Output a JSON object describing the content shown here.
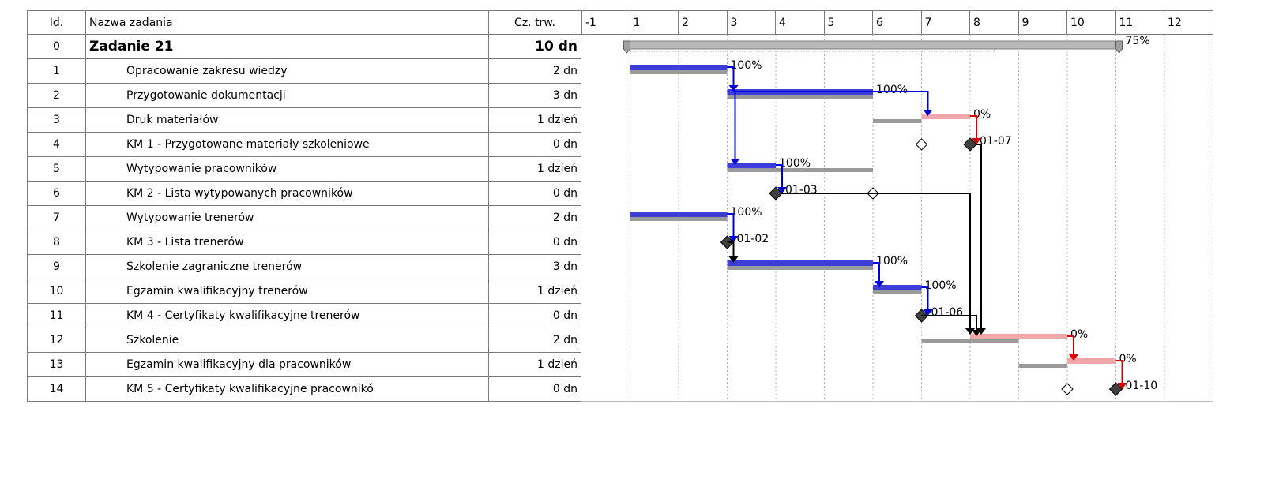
{
  "table": {
    "headers": {
      "id": "Id.",
      "name": "Nazwa zadania",
      "duration": "Cz. trw."
    },
    "rows": [
      {
        "id": "0",
        "name": "Zadanie 21",
        "duration": "10 dn",
        "summary": true
      },
      {
        "id": "1",
        "name": "Opracowanie zakresu wiedzy",
        "duration": "2 dn"
      },
      {
        "id": "2",
        "name": "Przygotowanie dokumentacji",
        "duration": "3 dn"
      },
      {
        "id": "3",
        "name": "Druk materiałów",
        "duration": "1 dzień"
      },
      {
        "id": "4",
        "name": "KM 1 - Przygotowane materiały szkoleniowe",
        "duration": "0 dn"
      },
      {
        "id": "5",
        "name": "Wytypowanie pracowników",
        "duration": "1 dzień"
      },
      {
        "id": "6",
        "name": "KM 2 - Lista wytypowanych pracowników",
        "duration": "0 dn"
      },
      {
        "id": "7",
        "name": "Wytypowanie trenerów",
        "duration": "2 dn"
      },
      {
        "id": "8",
        "name": "KM 3 - Lista trenerów",
        "duration": "0 dn"
      },
      {
        "id": "9",
        "name": "Szkolenie  zagraniczne trenerów",
        "duration": "3 dn"
      },
      {
        "id": "10",
        "name": "Egzamin kwalifikacyjny trenerów",
        "duration": "1 dzień"
      },
      {
        "id": "11",
        "name": "KM 4 - Certyfikaty kwalifikacyjne trenerów",
        "duration": "0 dn"
      },
      {
        "id": "12",
        "name": "Szkolenie",
        "duration": "2 dn"
      },
      {
        "id": "13",
        "name": "Egzamin kwalifikacyjny dla pracowników",
        "duration": "1 dzień"
      },
      {
        "id": "14",
        "name": "KM 5 - Certyfikaty kwalifikacyjne pracownikó",
        "duration": "0 dn"
      }
    ]
  },
  "timescale": [
    "-1",
    "1",
    "2",
    "3",
    "4",
    "5",
    "6",
    "7",
    "8",
    "9",
    "10",
    "11",
    "12"
  ],
  "colors": {
    "complete": "#3d3dd8",
    "incomplete": "#f0a8a8",
    "baseline": "#9a9a9a",
    "summary": "#b8b8b8",
    "link_done": "#0000dd",
    "link_todo": "#dd0000",
    "link_ms": "#000000"
  },
  "gantt": {
    "summary": {
      "start": 0,
      "end": 10,
      "progress": 75,
      "label": "75%"
    },
    "tasks": [
      {
        "row": 1,
        "type": "bar",
        "start": 0,
        "end": 2,
        "progress": 100,
        "label": "100%",
        "baseline": [
          0,
          2
        ]
      },
      {
        "row": 2,
        "type": "bar",
        "start": 2,
        "end": 5,
        "progress": 100,
        "label": "100%",
        "baseline": [
          2,
          5
        ]
      },
      {
        "row": 3,
        "type": "bar",
        "start": 6,
        "end": 7,
        "progress": 0,
        "label": "0%",
        "baseline": [
          5,
          6
        ]
      },
      {
        "row": 4,
        "type": "milestone",
        "date": 7,
        "label": "01-07",
        "baseline": 6
      },
      {
        "row": 5,
        "type": "bar",
        "start": 2,
        "end": 3,
        "progress": 100,
        "label": "100%",
        "baseline": [
          2,
          5
        ]
      },
      {
        "row": 6,
        "type": "milestone",
        "date": 3,
        "label": "01-03",
        "baseline": 5
      },
      {
        "row": 7,
        "type": "bar",
        "start": 0,
        "end": 2,
        "progress": 100,
        "label": "100%",
        "baseline": [
          0,
          2
        ]
      },
      {
        "row": 8,
        "type": "milestone",
        "date": 2,
        "label": "01-02"
      },
      {
        "row": 9,
        "type": "bar",
        "start": 2,
        "end": 5,
        "progress": 100,
        "label": "100%",
        "baseline": [
          2,
          5
        ]
      },
      {
        "row": 10,
        "type": "bar",
        "start": 5,
        "end": 6,
        "progress": 100,
        "label": "100%",
        "baseline": [
          5,
          6
        ]
      },
      {
        "row": 11,
        "type": "milestone",
        "date": 6,
        "label": "01-06"
      },
      {
        "row": 12,
        "type": "bar",
        "start": 7,
        "end": 9,
        "progress": 0,
        "label": "0%",
        "baseline": [
          6,
          8
        ]
      },
      {
        "row": 13,
        "type": "bar",
        "start": 9,
        "end": 10,
        "progress": 0,
        "label": "0%",
        "baseline": [
          8,
          9
        ]
      },
      {
        "row": 14,
        "type": "milestone",
        "date": 10,
        "label": "01-10",
        "baseline": 9
      }
    ],
    "links": [
      {
        "from": 1,
        "to": 2,
        "kind": "done"
      },
      {
        "from": 2,
        "to": 3,
        "kind": "done"
      },
      {
        "from": 3,
        "to": 4,
        "kind": "todo"
      },
      {
        "from": 2,
        "to": 5,
        "kind": "done",
        "drop": true
      },
      {
        "from": 5,
        "to": 6,
        "kind": "done"
      },
      {
        "from": 7,
        "to": 8,
        "kind": "done"
      },
      {
        "from": 8,
        "to": 9,
        "kind": "ms"
      },
      {
        "from": 9,
        "to": 10,
        "kind": "done"
      },
      {
        "from": 10,
        "to": 11,
        "kind": "done"
      },
      {
        "from": 6,
        "to": 12,
        "kind": "ms",
        "route": "long"
      },
      {
        "from": 4,
        "to": 12,
        "kind": "ms",
        "route": "long"
      },
      {
        "from": 11,
        "to": 12,
        "kind": "ms"
      },
      {
        "from": 12,
        "to": 13,
        "kind": "todo"
      },
      {
        "from": 13,
        "to": 14,
        "kind": "todo"
      }
    ]
  }
}
